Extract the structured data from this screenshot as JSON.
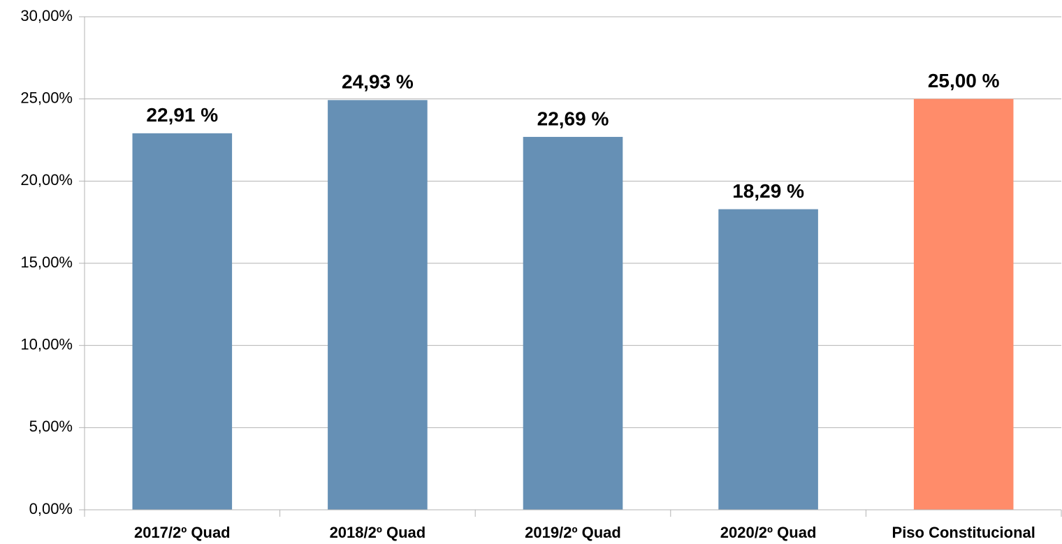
{
  "chart_data": {
    "type": "bar",
    "categories": [
      "2017/2º Quad",
      "2018/2º Quad",
      "2019/2º Quad",
      "2020/2º Quad",
      "Piso Constitucional"
    ],
    "values": [
      22.91,
      24.93,
      22.69,
      18.29,
      25
    ],
    "value_labels": [
      "22,91 %",
      "24,93 %",
      "22,69 %",
      "18,29 %",
      "25,00 %"
    ],
    "colors": [
      "#6690b5",
      "#6690b5",
      "#6690b5",
      "#6690b5",
      "#ff8c6a"
    ],
    "ylim": [
      0,
      30
    ],
    "yticks": [
      {
        "value": 0,
        "label": "0,00%"
      },
      {
        "value": 5,
        "label": "5,00%"
      },
      {
        "value": 10,
        "label": "10,00%"
      },
      {
        "value": 15,
        "label": "15,00%"
      },
      {
        "value": 20,
        "label": "20,00%"
      },
      {
        "value": 25,
        "label": "25,00%"
      },
      {
        "value": 30,
        "label": "30,00%"
      }
    ],
    "grid": true
  }
}
